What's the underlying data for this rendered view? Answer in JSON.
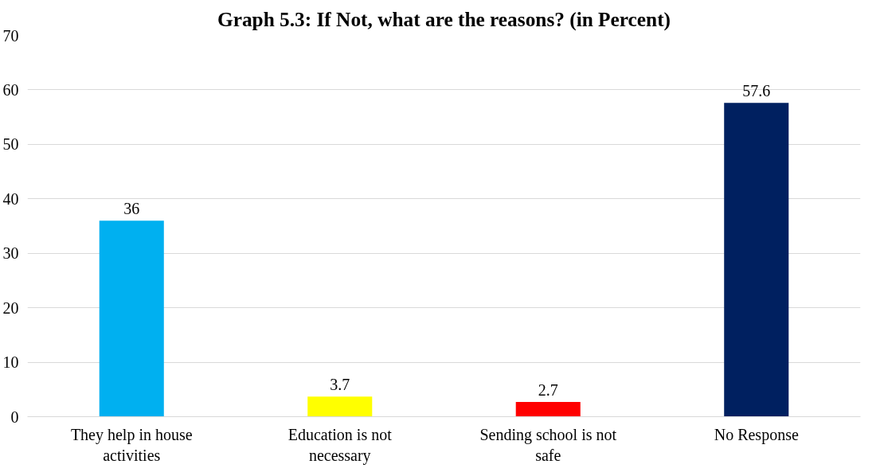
{
  "chart_data": {
    "type": "bar",
    "title": "Graph 5.3: If Not, what are the reasons? (in Percent)",
    "categories": [
      "They help in house activities",
      "Education is not necessary",
      "Sending school is not safe",
      "No Response"
    ],
    "values": [
      36,
      3.7,
      2.7,
      57.6
    ],
    "colors": [
      "#00b0f0",
      "#ffff00",
      "#ff0000",
      "#002060"
    ],
    "ylim": [
      0,
      70
    ],
    "yticks": [
      0,
      10,
      20,
      30,
      40,
      50,
      60,
      70
    ],
    "grid": "y",
    "data_labels": true
  }
}
